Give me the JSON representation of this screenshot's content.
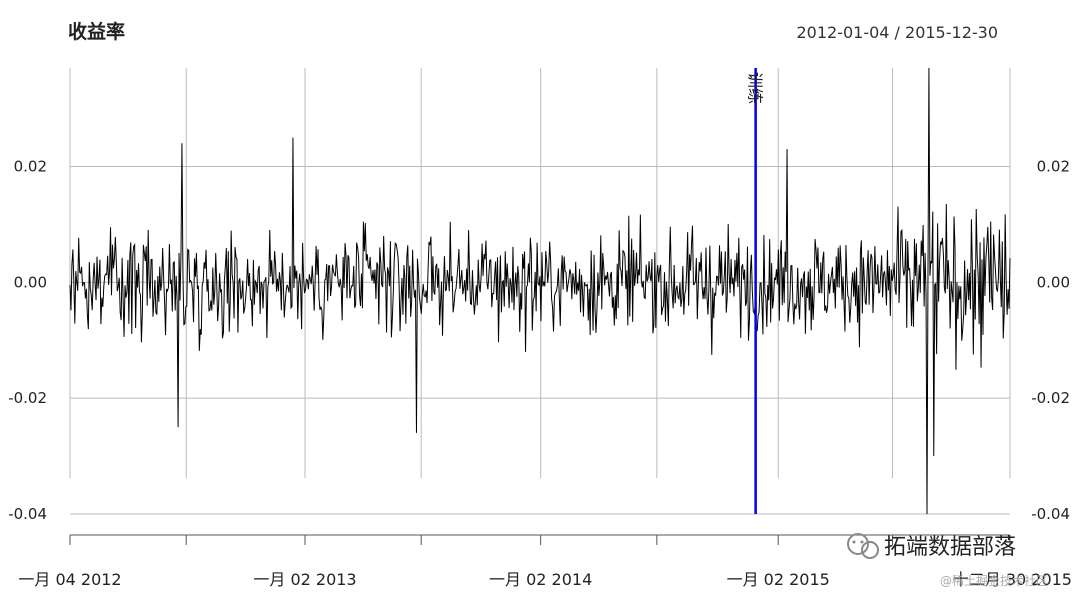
{
  "chart_data": {
    "type": "line",
    "title": "收益率",
    "date_range": "2012-01-04 / 2015-12-30",
    "y_ticks": [
      "0.02",
      "0.00",
      "-0.02",
      "-0.04"
    ],
    "y_tick_values": [
      0.02,
      0.0,
      -0.02,
      -0.04
    ],
    "ylim": [
      -0.04,
      0.037
    ],
    "x_tick_labels": [
      "一月 04 2012",
      "一月 02 2013",
      "一月 02 2014",
      "一月 02 2015",
      "十二月 30 2015"
    ],
    "x_range": [
      "2012-01-04",
      "2015-12-30"
    ],
    "grid": true,
    "series": [
      {
        "style": "daily returns, black vertical-line plot",
        "x_start": "2012-01-04",
        "x_end": "2015-12-30",
        "approx_points": 975,
        "typical_range": [
          -0.02,
          0.02
        ],
        "notable_extremes": [
          {
            "x": "2012-06-19",
            "value": -0.025
          },
          {
            "x": "2012-06-26",
            "value": 0.024
          },
          {
            "x": "2012-12-14",
            "value": 0.025
          },
          {
            "x": "2013-06-24",
            "value": -0.026
          },
          {
            "x": "2015-01-19",
            "value": 0.023
          },
          {
            "x": "2015-08-24",
            "value": -0.04
          },
          {
            "x": "2015-08-26",
            "value": 0.037
          },
          {
            "x": "2015-09-03",
            "value": -0.03
          }
        ]
      }
    ],
    "annotations": [
      {
        "type": "vertical-line",
        "x": "2014-12-01",
        "label": "训练",
        "color": "#0000ee"
      }
    ]
  },
  "watermark": {
    "brand": "拓端数据部落",
    "footer": "@稀土掘金技术社区"
  }
}
